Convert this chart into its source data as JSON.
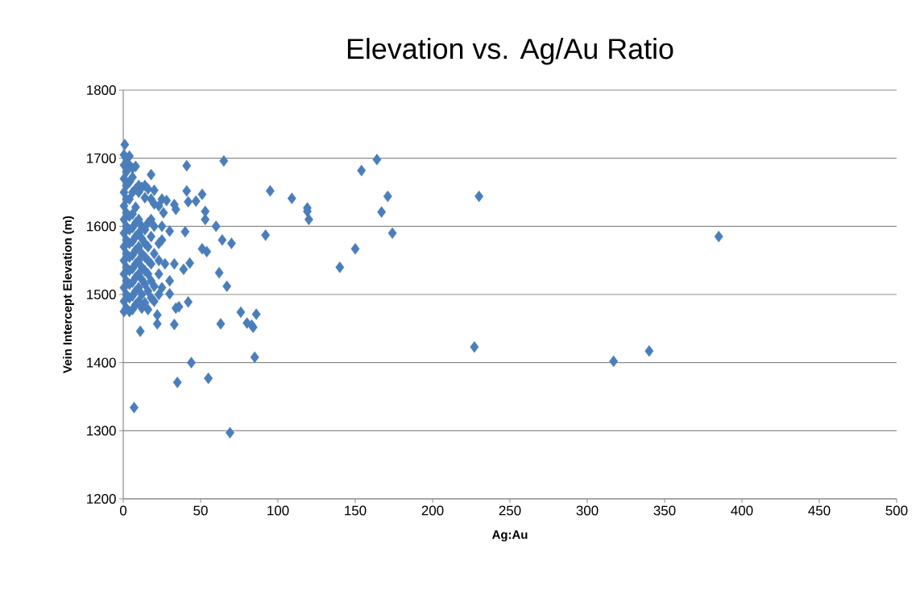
{
  "chart_data": {
    "type": "scatter",
    "title": "Elevation vs. Ag/Au Ratio",
    "xlabel": "Ag:Au",
    "ylabel": "Vein Intercept Elevation (m)",
    "xlim": [
      0,
      500
    ],
    "ylim": [
      1200,
      1800
    ],
    "xticks": [
      0,
      50,
      100,
      150,
      200,
      250,
      300,
      350,
      400,
      450,
      500
    ],
    "yticks": [
      1200,
      1300,
      1400,
      1500,
      1600,
      1700,
      1800
    ],
    "grid": "y",
    "marker": "diamond",
    "series": [
      {
        "color": "#4a7ebb",
        "x": [
          385,
          340,
          317,
          230,
          227,
          174,
          171,
          167,
          164,
          154,
          150,
          140,
          120,
          119,
          119,
          109,
          95,
          92,
          86,
          85,
          84,
          83,
          80,
          76,
          70,
          69,
          67,
          65,
          64,
          63,
          62,
          60,
          55,
          54,
          53,
          53,
          51,
          51,
          47,
          44,
          43,
          42,
          42,
          41,
          41,
          40,
          39,
          36,
          35,
          34,
          34,
          33,
          33,
          33,
          30,
          30,
          30,
          28,
          27,
          26,
          25,
          22,
          22,
          20,
          18,
          11,
          7,
          1,
          0.5,
          0.5,
          0.5,
          0.5,
          0.5,
          0.5,
          0.5,
          0.5,
          0.5,
          0.5,
          0.5,
          0.5,
          0.5,
          2,
          2,
          2,
          2,
          2,
          2,
          2,
          2,
          2,
          2,
          2,
          2,
          4,
          4,
          4,
          4,
          4,
          4,
          4,
          4,
          4,
          4,
          4,
          4,
          6,
          6,
          6,
          6,
          6,
          6,
          6,
          6,
          6,
          6,
          6,
          8,
          8,
          8,
          8,
          8,
          8,
          8,
          8,
          8,
          8,
          10,
          10,
          10,
          10,
          10,
          10,
          10,
          10,
          10,
          12,
          12,
          12,
          12,
          12,
          12,
          12,
          12,
          14,
          14,
          14,
          14,
          14,
          14,
          14,
          14,
          16,
          16,
          16,
          16,
          16,
          16,
          16,
          18,
          18,
          18,
          18,
          18,
          18,
          20,
          20,
          20,
          20,
          20,
          23,
          23,
          23,
          23,
          23,
          25,
          25,
          25
        ],
        "values": [
          1585,
          1417,
          1402,
          1644,
          1423,
          1590,
          1644,
          1621,
          1698,
          1682,
          1567,
          1540,
          1610,
          1622,
          1627,
          1641,
          1652,
          1587,
          1471,
          1408,
          1452,
          1455,
          1458,
          1474,
          1575,
          1297,
          1512,
          1696,
          1580,
          1457,
          1532,
          1600,
          1377,
          1563,
          1610,
          1622,
          1647,
          1567,
          1637,
          1400,
          1546,
          1636,
          1489,
          1689,
          1652,
          1592,
          1537,
          1482,
          1371,
          1625,
          1480,
          1632,
          1545,
          1456,
          1593,
          1520,
          1501,
          1638,
          1545,
          1620,
          1580,
          1470,
          1457,
          1653,
          1676,
          1446,
          1334,
          1720,
          1475,
          1490,
          1510,
          1530,
          1550,
          1570,
          1590,
          1610,
          1630,
          1650,
          1670,
          1690,
          1705,
          1480,
          1500,
          1520,
          1540,
          1560,
          1580,
          1600,
          1620,
          1640,
          1660,
          1680,
          1700,
          1475,
          1495,
          1515,
          1535,
          1555,
          1575,
          1595,
          1615,
          1640,
          1665,
          1690,
          1703,
          1478,
          1498,
          1518,
          1538,
          1558,
          1578,
          1598,
          1618,
          1650,
          1672,
          1685,
          1485,
          1505,
          1525,
          1545,
          1565,
          1585,
          1605,
          1628,
          1655,
          1688,
          1490,
          1510,
          1530,
          1550,
          1570,
          1590,
          1610,
          1650,
          1660,
          1480,
          1500,
          1522,
          1540,
          1560,
          1582,
          1600,
          1657,
          1488,
          1515,
          1535,
          1555,
          1575,
          1595,
          1642,
          1660,
          1478,
          1505,
          1530,
          1550,
          1570,
          1605,
          1655,
          1495,
          1520,
          1545,
          1585,
          1610,
          1640,
          1490,
          1512,
          1560,
          1600,
          1633,
          1500,
          1530,
          1550,
          1575,
          1630,
          1510,
          1640,
          1600
        ]
      }
    ]
  }
}
